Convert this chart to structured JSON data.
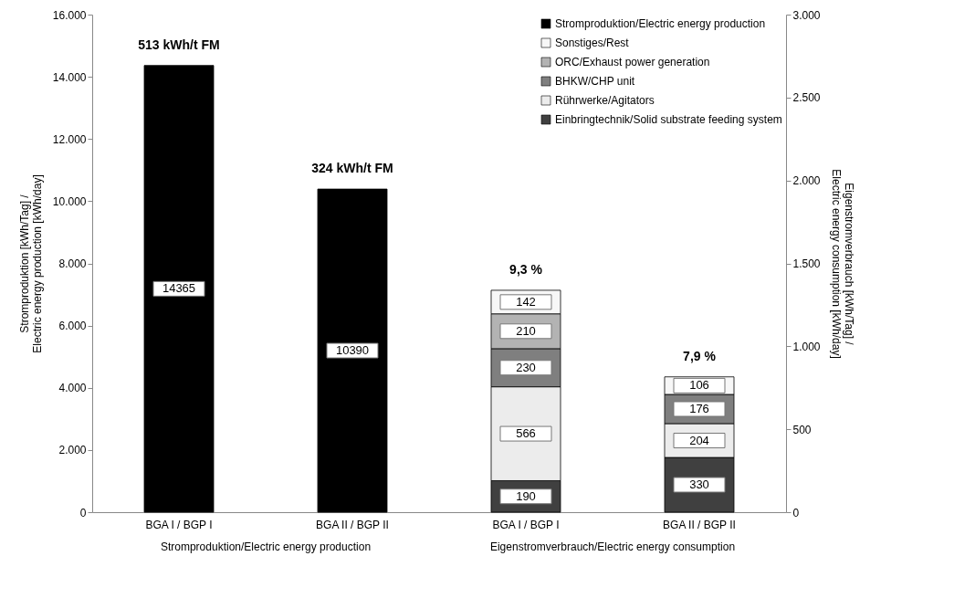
{
  "chart_data": {
    "type": "bar",
    "stacked": true,
    "data_labels": true,
    "legend": "top right",
    "categories": [
      "BGA I / BGP I",
      "BGA II / BGP II",
      "BGA I / BGP I",
      "BGA II / BGP II"
    ],
    "ylabel": "Stromproduktion [kWh/Tag] /\nElectric energy production [kWh/day]",
    "y2label": "Eigenstromverbrauch [kWh/Tag] /\nElectric energy consumption [kWh/day]",
    "ylim": [
      0,
      16000
    ],
    "yticks": [
      0,
      {
        "value": 2000,
        "label": "2.000"
      },
      {
        "value": 4000,
        "label": "4.000"
      },
      {
        "value": 6000,
        "label": "6.000"
      },
      {
        "value": 8000,
        "label": "8.000"
      },
      {
        "value": 10000,
        "label": "10.000"
      },
      {
        "value": 12000,
        "label": "12.000"
      },
      {
        "value": 14000,
        "label": "14.000"
      },
      {
        "value": 16000,
        "label": "16.000"
      }
    ],
    "y2lim": [
      0,
      3000
    ],
    "y2ticks": [
      0,
      500,
      {
        "value": 1000,
        "label": "1.000"
      },
      {
        "value": 1500,
        "label": "1.500"
      },
      {
        "value": 2000,
        "label": "2.000"
      },
      {
        "value": 2500,
        "label": "2.500"
      },
      {
        "value": 3000,
        "label": "3.000"
      }
    ],
    "series": [
      {
        "name": "Stromproduktion/Electric energy production",
        "color": "#000000",
        "values": [
          14365,
          10390,
          null,
          null
        ]
      },
      {
        "name": "Einbringtechnik/Solid substrate feeding system",
        "color": "#404040",
        "axis": "y2",
        "values": [
          null,
          null,
          190,
          330
        ]
      },
      {
        "name": "Rührwerke/Agitators",
        "color": "#ececec",
        "axis": "y2",
        "values": [
          null,
          null,
          566,
          204
        ]
      },
      {
        "name": "BHKW/CHP unit",
        "color": "#7f7f7f",
        "axis": "y2",
        "values": [
          null,
          null,
          230,
          176
        ]
      },
      {
        "name": "ORC/Exhaust power generation",
        "color": "#b3b3b3",
        "axis": "y2",
        "values": [
          null,
          null,
          210,
          null
        ]
      },
      {
        "name": "Sonstiges/Rest",
        "color": "#f7f7f7",
        "axis": "y2",
        "values": [
          null,
          null,
          142,
          106
        ]
      }
    ],
    "annotations": [
      "513 kWh/t FM",
      "324 kWh/t FM",
      "9,3 %",
      "7,9 %",
      "Stromproduktion/Electric energy production",
      "Eigenstromverbrauch/Electric energy consumption"
    ]
  }
}
